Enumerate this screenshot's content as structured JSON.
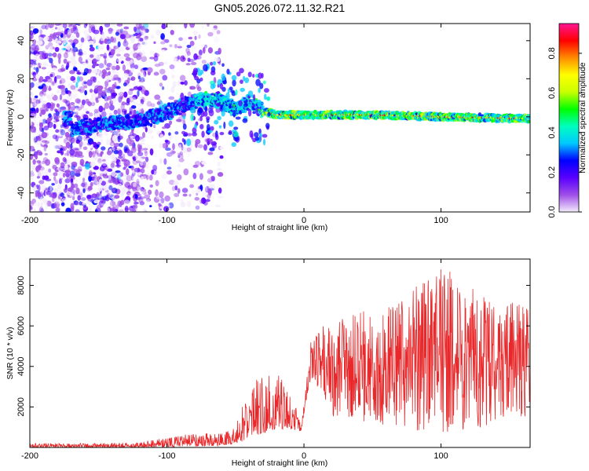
{
  "title": "GN05.2026.072.11.32.R21",
  "chart_data": [
    {
      "type": "heatmap",
      "name": "spectrogram",
      "xlabel": "Height of straight line (km)",
      "ylabel": "Frequency (Hz)",
      "xlim": [
        -200,
        165
      ],
      "ylim": [
        -50,
        49
      ],
      "xticks": [
        -200,
        -100,
        0,
        100
      ],
      "yticks": [
        -40,
        -20,
        0,
        20,
        40
      ],
      "ridge": [
        {
          "x": -170,
          "y": -7
        },
        {
          "x": -150,
          "y": -4
        },
        {
          "x": -125,
          "y": -2
        },
        {
          "x": -110,
          "y": 0
        },
        {
          "x": -90,
          "y": 5
        },
        {
          "x": -75,
          "y": 9
        },
        {
          "x": -60,
          "y": 8
        },
        {
          "x": -50,
          "y": 4
        },
        {
          "x": -40,
          "y": 8
        },
        {
          "x": -30,
          "y": 3
        },
        {
          "x": -20,
          "y": 1
        },
        {
          "x": 0,
          "y": 1
        },
        {
          "x": 50,
          "y": 1
        },
        {
          "x": 100,
          "y": 0
        },
        {
          "x": 165,
          "y": -1
        }
      ],
      "colorbar": {
        "label": "Normalized spectral amplitude",
        "range": [
          0,
          0.95
        ],
        "ticks": [
          "0.0",
          "0.2",
          "0.4",
          "0.6",
          "0.8"
        ],
        "colors": [
          "#f4ecfb",
          "#9e4ee8",
          "#5a00ff",
          "#0000ff",
          "#00c8ff",
          "#00ffc0",
          "#00ff00",
          "#c8ff00",
          "#ffff00",
          "#ff8c00",
          "#ff0000",
          "#ff1493"
        ]
      }
    },
    {
      "type": "line",
      "name": "snr",
      "xlabel": "Height of straight line (km)",
      "ylabel": "SNR (10 * v/v)",
      "xlim": [
        -200,
        165
      ],
      "ylim": [
        0,
        9300
      ],
      "xticks": [
        -200,
        -100,
        0,
        100
      ],
      "yticks": [
        2000,
        4000,
        6000,
        8000
      ],
      "color": "#e8282a",
      "envelope": [
        {
          "x": -200,
          "min": 0,
          "max": 200
        },
        {
          "x": -120,
          "min": 0,
          "max": 250
        },
        {
          "x": -100,
          "min": 20,
          "max": 500
        },
        {
          "x": -80,
          "min": 50,
          "max": 700
        },
        {
          "x": -60,
          "min": 80,
          "max": 700
        },
        {
          "x": -52,
          "min": 100,
          "max": 900
        },
        {
          "x": -45,
          "min": 300,
          "max": 2100
        },
        {
          "x": -35,
          "min": 600,
          "max": 3400
        },
        {
          "x": -20,
          "min": 900,
          "max": 3700
        },
        {
          "x": -10,
          "min": 900,
          "max": 3000
        },
        {
          "x": -2,
          "min": 800,
          "max": 1000
        },
        {
          "x": 5,
          "min": 3500,
          "max": 5200
        },
        {
          "x": 20,
          "min": 1500,
          "max": 6500
        },
        {
          "x": 50,
          "min": 1200,
          "max": 6800
        },
        {
          "x": 80,
          "min": 800,
          "max": 8000
        },
        {
          "x": 100,
          "min": 700,
          "max": 9200
        },
        {
          "x": 130,
          "min": 1000,
          "max": 7500
        },
        {
          "x": 165,
          "min": 1500,
          "max": 7000
        }
      ]
    }
  ]
}
